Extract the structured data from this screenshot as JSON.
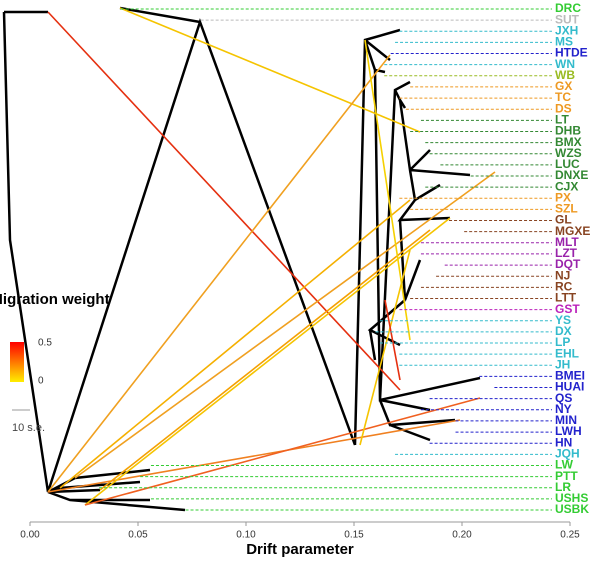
{
  "chart_data": {
    "type": "tree",
    "x_label": "Drift parameter",
    "xlim": [
      0,
      0.25
    ],
    "xticks": [
      {
        "value": 0,
        "label": "0.00"
      },
      {
        "value": 0.05,
        "label": "0.05"
      },
      {
        "value": 0.1,
        "label": "0.10"
      },
      {
        "value": 0.15,
        "label": "0.15"
      },
      {
        "value": 0.2,
        "label": "0.20"
      },
      {
        "value": 0.25,
        "label": "0.25"
      }
    ],
    "legend_title": "Migration weight",
    "legend_range": [
      0,
      0.5
    ],
    "legend_colors": [
      "#ffee00",
      "#ff0000"
    ],
    "scale_bar_label": "10 s.e.",
    "leaves": [
      {
        "name": "DRC",
        "color": "#33cc33",
        "tip": 0.042
      },
      {
        "name": "SUT",
        "color": "#bbbbbb",
        "tip": 0.079
      },
      {
        "name": "JXH",
        "color": "#33bbcc",
        "tip": 0.171
      },
      {
        "name": "MS",
        "color": "#33bbcc",
        "tip": 0.169
      },
      {
        "name": "HTDE",
        "color": "#2222cc",
        "tip": 0.167
      },
      {
        "name": "WN",
        "color": "#33bbcc",
        "tip": 0.164
      },
      {
        "name": "WB",
        "color": "#99bb22",
        "tip": 0.164
      },
      {
        "name": "GX",
        "color": "#ee9922",
        "tip": 0.176
      },
      {
        "name": "TC",
        "color": "#ee9922",
        "tip": 0.171
      },
      {
        "name": "DS",
        "color": "#ee9922",
        "tip": 0.174
      },
      {
        "name": "LT",
        "color": "#338833",
        "tip": 0.181
      },
      {
        "name": "DHB",
        "color": "#338833",
        "tip": 0.176
      },
      {
        "name": "BMX",
        "color": "#338833",
        "tip": 0.183
      },
      {
        "name": "WZS",
        "color": "#338833",
        "tip": 0.185
      },
      {
        "name": "LUC",
        "color": "#338833",
        "tip": 0.19
      },
      {
        "name": "DNXE",
        "color": "#338833",
        "tip": 0.204
      },
      {
        "name": "CJX",
        "color": "#338833",
        "tip": 0.183
      },
      {
        "name": "PX",
        "color": "#ee9922",
        "tip": 0.171
      },
      {
        "name": "SZL",
        "color": "#ee9922",
        "tip": 0.176
      },
      {
        "name": "GL",
        "color": "#884422",
        "tip": 0.194
      },
      {
        "name": "MGXE",
        "color": "#884422",
        "tip": 0.201
      },
      {
        "name": "MLT",
        "color": "#9922aa",
        "tip": 0.181
      },
      {
        "name": "LZT",
        "color": "#9922aa",
        "tip": 0.181
      },
      {
        "name": "DQT",
        "color": "#9922aa",
        "tip": 0.192
      },
      {
        "name": "NJ",
        "color": "#884422",
        "tip": 0.188
      },
      {
        "name": "RC",
        "color": "#884422",
        "tip": 0.181
      },
      {
        "name": "LTT",
        "color": "#884422",
        "tip": 0.176
      },
      {
        "name": "GST",
        "color": "#bb22bb",
        "tip": 0.171
      },
      {
        "name": "YS",
        "color": "#33bbcc",
        "tip": 0.162
      },
      {
        "name": "DX",
        "color": "#33bbcc",
        "tip": 0.16
      },
      {
        "name": "LP",
        "color": "#33bbcc",
        "tip": 0.162
      },
      {
        "name": "EHL",
        "color": "#33bbcc",
        "tip": 0.171
      },
      {
        "name": "JH",
        "color": "#33bbcc",
        "tip": 0.171
      },
      {
        "name": "BMEI",
        "color": "#2222cc",
        "tip": 0.208
      },
      {
        "name": "HUAI",
        "color": "#2222cc",
        "tip": 0.215
      },
      {
        "name": "QS",
        "color": "#2222cc",
        "tip": 0.185
      },
      {
        "name": "NY",
        "color": "#2222cc",
        "tip": 0.181
      },
      {
        "name": "MIN",
        "color": "#2222cc",
        "tip": 0.197
      },
      {
        "name": "LWH",
        "color": "#2222cc",
        "tip": 0.197
      },
      {
        "name": "HN",
        "color": "#2222cc",
        "tip": 0.185
      },
      {
        "name": "JQH",
        "color": "#33bbcc",
        "tip": 0.169
      },
      {
        "name": "LW",
        "color": "#33cc33",
        "tip": 0.056
      },
      {
        "name": "PTT",
        "color": "#33cc33",
        "tip": 0.051
      },
      {
        "name": "LR",
        "color": "#33cc33",
        "tip": 0.032
      },
      {
        "name": "USHS",
        "color": "#33cc33",
        "tip": 0.056
      },
      {
        "name": "USBK",
        "color": "#33cc33",
        "tip": 0.072
      }
    ]
  }
}
